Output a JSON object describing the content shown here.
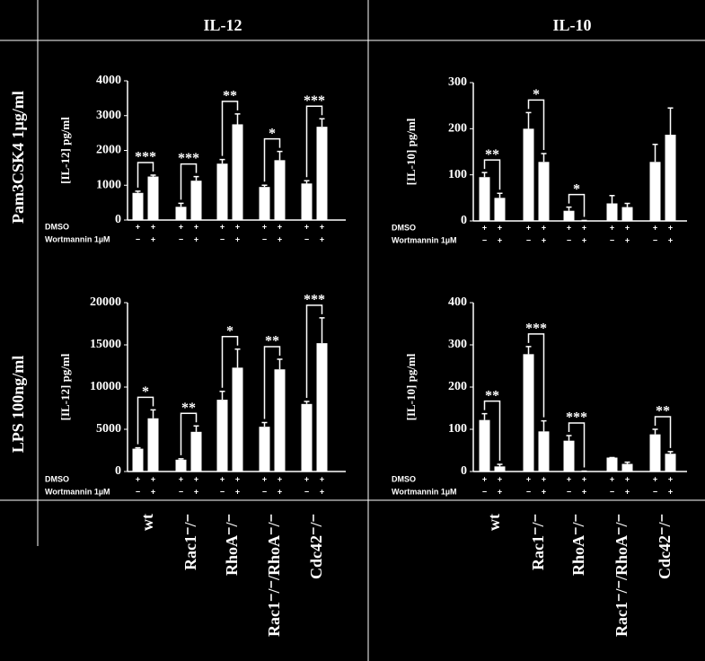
{
  "headers": {
    "columns": [
      "IL-12",
      "IL-10"
    ],
    "rows": [
      "Pam3CSK4 1µg/ml",
      "LPS 100ng/ml"
    ]
  },
  "genotypes": [
    "wt",
    "Rac1⁻/⁻",
    "RhoA⁻/⁻",
    "Rac1⁻/⁻/RhoA⁻/⁻",
    "Cdc42⁻/⁻"
  ],
  "chart_data": [
    {
      "type": "bar",
      "y_label": "[IL-12] pg/ml",
      "ylim": [
        0,
        4000
      ],
      "yticks": [
        0,
        1000,
        2000,
        3000,
        4000
      ],
      "series": [
        {
          "color": "#ffffff",
          "values": [
            780,
            380,
            1620,
            950,
            1050
          ],
          "errors": [
            50,
            100,
            120,
            50,
            80
          ]
        },
        {
          "color": "#ffffff",
          "values": [
            1250,
            1130,
            2750,
            1720,
            2680
          ],
          "errors": [
            40,
            120,
            300,
            250,
            230
          ]
        }
      ],
      "significance": [
        "***",
        "***",
        "**",
        "*",
        "***"
      ],
      "treatment_rows": [
        {
          "label": "DMSO",
          "signs": [
            "+",
            "+"
          ]
        },
        {
          "label": "Wortmannin 1µM",
          "signs": [
            "−",
            "+"
          ]
        }
      ]
    },
    {
      "type": "bar",
      "y_label": "[IL-10] pg/ml",
      "ylim": [
        0,
        300
      ],
      "yticks": [
        0,
        100,
        200,
        300
      ],
      "series": [
        {
          "color": "#ffffff",
          "values": [
            95,
            200,
            22,
            38,
            128
          ],
          "errors": [
            10,
            35,
            8,
            17,
            38
          ]
        },
        {
          "color": "#ffffff",
          "values": [
            50,
            128,
            1,
            30,
            187
          ],
          "errors": [
            10,
            18,
            0,
            8,
            58
          ]
        }
      ],
      "significance": [
        "**",
        "*",
        "*",
        null,
        null
      ],
      "treatment_rows": [
        {
          "label": "DMSO",
          "signs": [
            "+",
            "+"
          ]
        },
        {
          "label": "Wortmannin 1µM",
          "signs": [
            "−",
            "+"
          ]
        }
      ]
    },
    {
      "type": "bar",
      "y_label": "[IL-12] pg/ml",
      "ylim": [
        0,
        20000
      ],
      "yticks": [
        0,
        5000,
        10000,
        15000,
        20000
      ],
      "series": [
        {
          "color": "#ffffff",
          "values": [
            2700,
            1400,
            8500,
            5300,
            8000
          ],
          "errors": [
            100,
            100,
            1000,
            500,
            300
          ]
        },
        {
          "color": "#ffffff",
          "values": [
            6300,
            4700,
            12300,
            12100,
            15200
          ],
          "errors": [
            1000,
            700,
            2200,
            1200,
            3000
          ]
        }
      ],
      "significance": [
        "*",
        "**",
        "*",
        "**",
        "***"
      ],
      "treatment_rows": [
        {
          "label": "DMSO",
          "signs": [
            "+",
            "+"
          ]
        },
        {
          "label": "Wortmannin 1µM",
          "signs": [
            "−",
            "+"
          ]
        }
      ]
    },
    {
      "type": "bar",
      "y_label": "[IL-10] pg/ml",
      "ylim": [
        0,
        400
      ],
      "yticks": [
        0,
        100,
        200,
        300,
        400
      ],
      "series": [
        {
          "color": "#ffffff",
          "values": [
            122,
            278,
            73,
            33,
            88
          ],
          "errors": [
            15,
            18,
            12,
            0,
            12
          ]
        },
        {
          "color": "#ffffff",
          "values": [
            12,
            95,
            1,
            18,
            42
          ],
          "errors": [
            5,
            25,
            0,
            4,
            5
          ]
        }
      ],
      "significance": [
        "**",
        "***",
        "***",
        null,
        "**"
      ],
      "treatment_rows": [
        {
          "label": "DMSO",
          "signs": [
            "+",
            "+"
          ]
        },
        {
          "label": "Wortmannin 1µM",
          "signs": [
            "−",
            "+"
          ]
        }
      ]
    }
  ]
}
